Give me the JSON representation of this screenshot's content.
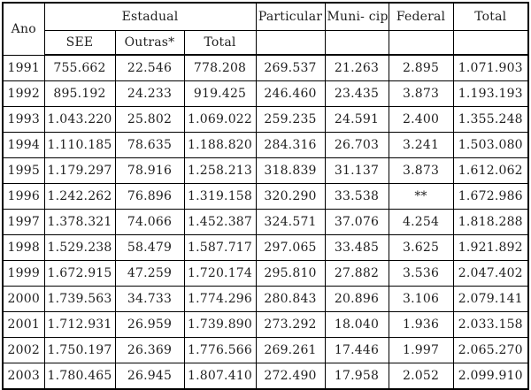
{
  "page": {
    "background_color": "#ffffff",
    "border_color": "#000000",
    "text_color": "#1f1f1f"
  },
  "table": {
    "header": {
      "ano": "Ano",
      "estadual": "Estadual",
      "sub": [
        "SEE",
        "Outras*",
        "Total"
      ],
      "particular": "Particular",
      "municipal": "Muni-\ncipal",
      "federal": "Federal",
      "total": "Total"
    },
    "column_keys": [
      "ano",
      "see",
      "outras",
      "total_estadual",
      "particular",
      "municipal",
      "federal",
      "total"
    ],
    "rows": [
      {
        "ano": "1991",
        "see": "755.662",
        "outras": "22.546",
        "total_estadual": "778.208",
        "particular": "269.537",
        "municipal": "21.263",
        "federal": "2.895",
        "total": "1.071.903"
      },
      {
        "ano": "1992",
        "see": "895.192",
        "outras": "24.233",
        "total_estadual": "919.425",
        "particular": "246.460",
        "municipal": "23.435",
        "federal": "3.873",
        "total": "1.193.193"
      },
      {
        "ano": "1993",
        "see": "1.043.220",
        "outras": "25.802",
        "total_estadual": "1.069.022",
        "particular": "259.235",
        "municipal": "24.591",
        "federal": "2.400",
        "total": "1.355.248"
      },
      {
        "ano": "1994",
        "see": "1.110.185",
        "outras": "78.635",
        "total_estadual": "1.188.820",
        "particular": "284.316",
        "municipal": "26.703",
        "federal": "3.241",
        "total": "1.503.080"
      },
      {
        "ano": "1995",
        "see": "1.179.297",
        "outras": "78.916",
        "total_estadual": "1.258.213",
        "particular": "318.839",
        "municipal": "31.137",
        "federal": "3.873",
        "total": "1.612.062"
      },
      {
        "ano": "1996",
        "see": "1.242.262",
        "outras": "76.896",
        "total_estadual": "1.319.158",
        "particular": "320.290",
        "municipal": "33.538",
        "federal": "**",
        "total": "1.672.986"
      },
      {
        "ano": "1997",
        "see": "1.378.321",
        "outras": "74.066",
        "total_estadual": "1.452.387",
        "particular": "324.571",
        "municipal": "37.076",
        "federal": "4.254",
        "total": "1.818.288"
      },
      {
        "ano": "1998",
        "see": "1.529.238",
        "outras": "58.479",
        "total_estadual": "1.587.717",
        "particular": "297.065",
        "municipal": "33.485",
        "federal": "3.625",
        "total": "1.921.892"
      },
      {
        "ano": "1999",
        "see": "1.672.915",
        "outras": "47.259",
        "total_estadual": "1.720.174",
        "particular": "295.810",
        "municipal": "27.882",
        "federal": "3.536",
        "total": "2.047.402"
      },
      {
        "ano": "2000",
        "see": "1.739.563",
        "outras": "34.733",
        "total_estadual": "1.774.296",
        "particular": "280.843",
        "municipal": "20.896",
        "federal": "3.106",
        "total": "2.079.141"
      },
      {
        "ano": "2001",
        "see": "1.712.931",
        "outras": "26.959",
        "total_estadual": "1.739.890",
        "particular": "273.292",
        "municipal": "18.040",
        "federal": "1.936",
        "total": "2.033.158"
      },
      {
        "ano": "2002",
        "see": "1.750.197",
        "outras": "26.369",
        "total_estadual": "1.776.566",
        "particular": "269.261",
        "municipal": "17.446",
        "federal": "1.997",
        "total": "2.065.270"
      },
      {
        "ano": "2003",
        "see": "1.780.465",
        "outras": "26.945",
        "total_estadual": "1.807.410",
        "particular": "272.490",
        "municipal": "17.958",
        "federal": "2.052",
        "total": "2.099.910"
      }
    ]
  }
}
